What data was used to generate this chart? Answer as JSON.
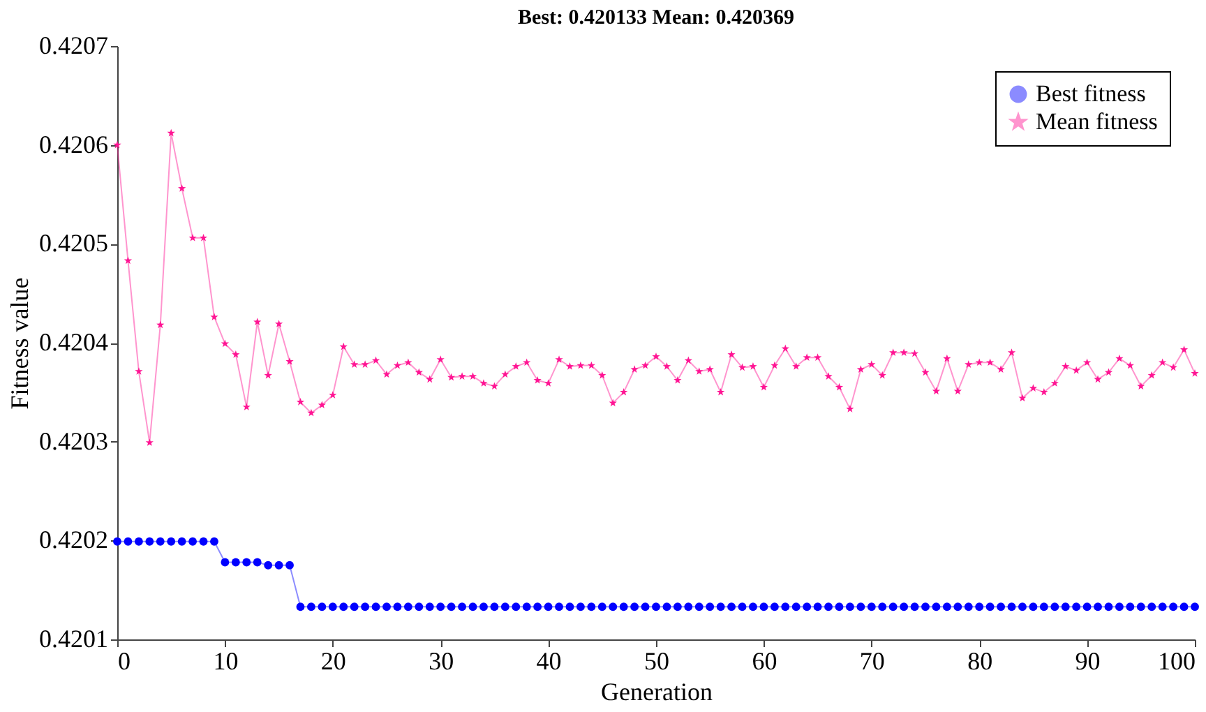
{
  "chart_data": {
    "type": "line",
    "title": "Best: 0.420133 Mean: 0.420369",
    "xlabel": "Generation",
    "ylabel": "Fitness value",
    "x": [
      0,
      1,
      2,
      3,
      4,
      5,
      6,
      7,
      8,
      9,
      10,
      11,
      12,
      13,
      14,
      15,
      16,
      17,
      18,
      19,
      20,
      21,
      22,
      23,
      24,
      25,
      26,
      27,
      28,
      29,
      30,
      31,
      32,
      33,
      34,
      35,
      36,
      37,
      38,
      39,
      40,
      41,
      42,
      43,
      44,
      45,
      46,
      47,
      48,
      49,
      50,
      51,
      52,
      53,
      54,
      55,
      56,
      57,
      58,
      59,
      60,
      61,
      62,
      63,
      64,
      65,
      66,
      67,
      68,
      69,
      70,
      71,
      72,
      73,
      74,
      75,
      76,
      77,
      78,
      79,
      80,
      81,
      82,
      83,
      84,
      85,
      86,
      87,
      88,
      89,
      90,
      91,
      92,
      93,
      94,
      95,
      96,
      97,
      98,
      99,
      100
    ],
    "series": [
      {
        "name": "Best fitness",
        "color": "#0000ff",
        "marker": "circle",
        "values": [
          0.420199,
          0.420199,
          0.420199,
          0.420199,
          0.420199,
          0.420199,
          0.420199,
          0.420199,
          0.420199,
          0.420199,
          0.420178,
          0.420178,
          0.420178,
          0.420178,
          0.420175,
          0.420175,
          0.420175,
          0.420133,
          0.420133,
          0.420133,
          0.420133,
          0.420133,
          0.420133,
          0.420133,
          0.420133,
          0.420133,
          0.420133,
          0.420133,
          0.420133,
          0.420133,
          0.420133,
          0.420133,
          0.420133,
          0.420133,
          0.420133,
          0.420133,
          0.420133,
          0.420133,
          0.420133,
          0.420133,
          0.420133,
          0.420133,
          0.420133,
          0.420133,
          0.420133,
          0.420133,
          0.420133,
          0.420133,
          0.420133,
          0.420133,
          0.420133,
          0.420133,
          0.420133,
          0.420133,
          0.420133,
          0.420133,
          0.420133,
          0.420133,
          0.420133,
          0.420133,
          0.420133,
          0.420133,
          0.420133,
          0.420133,
          0.420133,
          0.420133,
          0.420133,
          0.420133,
          0.420133,
          0.420133,
          0.420133,
          0.420133,
          0.420133,
          0.420133,
          0.420133,
          0.420133,
          0.420133,
          0.420133,
          0.420133,
          0.420133,
          0.420133,
          0.420133,
          0.420133,
          0.420133,
          0.420133,
          0.420133,
          0.420133,
          0.420133,
          0.420133,
          0.420133,
          0.420133,
          0.420133,
          0.420133,
          0.420133,
          0.420133,
          0.420133,
          0.420133,
          0.420133,
          0.420133,
          0.420133,
          0.420133
        ]
      },
      {
        "name": "Mean fitness",
        "color": "#ff1493",
        "marker": "star",
        "values": [
          0.4206,
          0.420483,
          0.420371,
          0.420299,
          0.420418,
          0.420612,
          0.420556,
          0.420506,
          0.420506,
          0.420426,
          0.420399,
          0.420388,
          0.420335,
          0.420421,
          0.420367,
          0.420419,
          0.420381,
          0.42034,
          0.420329,
          0.420337,
          0.420347,
          0.420396,
          0.420378,
          0.420378,
          0.420382,
          0.420368,
          0.420377,
          0.42038,
          0.42037,
          0.420363,
          0.420383,
          0.420365,
          0.420366,
          0.420366,
          0.420359,
          0.420356,
          0.420368,
          0.420376,
          0.42038,
          0.420362,
          0.420359,
          0.420383,
          0.420376,
          0.420377,
          0.420377,
          0.420367,
          0.420339,
          0.42035,
          0.420373,
          0.420377,
          0.420386,
          0.420376,
          0.420362,
          0.420382,
          0.420371,
          0.420373,
          0.42035,
          0.420388,
          0.420375,
          0.420376,
          0.420355,
          0.420377,
          0.420394,
          0.420376,
          0.420385,
          0.420385,
          0.420366,
          0.420355,
          0.420333,
          0.420373,
          0.420378,
          0.420367,
          0.42039,
          0.42039,
          0.420389,
          0.42037,
          0.420351,
          0.420384,
          0.420351,
          0.420378,
          0.42038,
          0.42038,
          0.420373,
          0.42039,
          0.420344,
          0.420354,
          0.42035,
          0.420359,
          0.420376,
          0.420372,
          0.42038,
          0.420363,
          0.42037,
          0.420384,
          0.420377,
          0.420356,
          0.420367,
          0.42038,
          0.420375,
          0.420393,
          0.420369
        ]
      }
    ],
    "xlim": [
      0,
      100
    ],
    "xticks": [
      0,
      10,
      20,
      30,
      40,
      50,
      60,
      70,
      80,
      90,
      100
    ],
    "ylim": [
      0.4201,
      0.4207
    ],
    "yticks": [
      0.4201,
      0.4202,
      0.4203,
      0.4204,
      0.4205,
      0.4206,
      0.4207
    ],
    "grid": false,
    "legend": "top right",
    "line_style": "solid"
  }
}
